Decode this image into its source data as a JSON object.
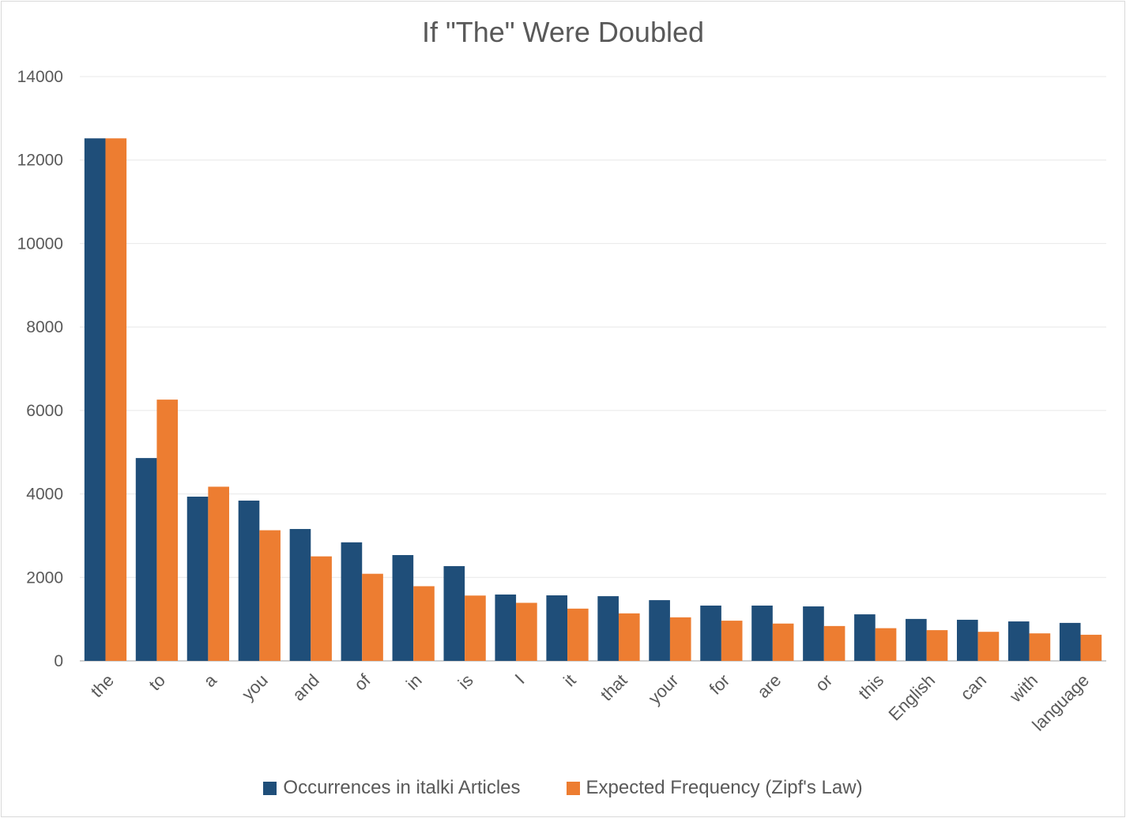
{
  "chart_data": {
    "type": "bar",
    "title": "If \"The\" Were Doubled",
    "xlabel": "",
    "ylabel": "",
    "ylim": [
      0,
      14000
    ],
    "yticks": [
      0,
      2000,
      4000,
      6000,
      8000,
      10000,
      12000,
      14000
    ],
    "grid": true,
    "legend_position": "bottom",
    "categories": [
      "the",
      "to",
      "a",
      "you",
      "and",
      "of",
      "in",
      "is",
      "I",
      "it",
      "that",
      "your",
      "for",
      "are",
      "or",
      "this",
      "English",
      "can",
      "with",
      "language"
    ],
    "series": [
      {
        "name": "Occurrences in italki Articles",
        "color": "#1f4e79",
        "values": [
          12520,
          4860,
          3935,
          3840,
          3160,
          2840,
          2535,
          2270,
          1590,
          1570,
          1550,
          1455,
          1325,
          1325,
          1305,
          1115,
          1005,
          985,
          945,
          910
        ]
      },
      {
        "name": "Expected Frequency (Zipf's Law)",
        "color": "#ed7d31",
        "values": [
          12520,
          6260,
          4173,
          3130,
          2504,
          2087,
          1789,
          1565,
          1391,
          1252,
          1138,
          1043,
          963,
          894,
          835,
          783,
          736,
          696,
          659,
          626
        ]
      }
    ]
  }
}
